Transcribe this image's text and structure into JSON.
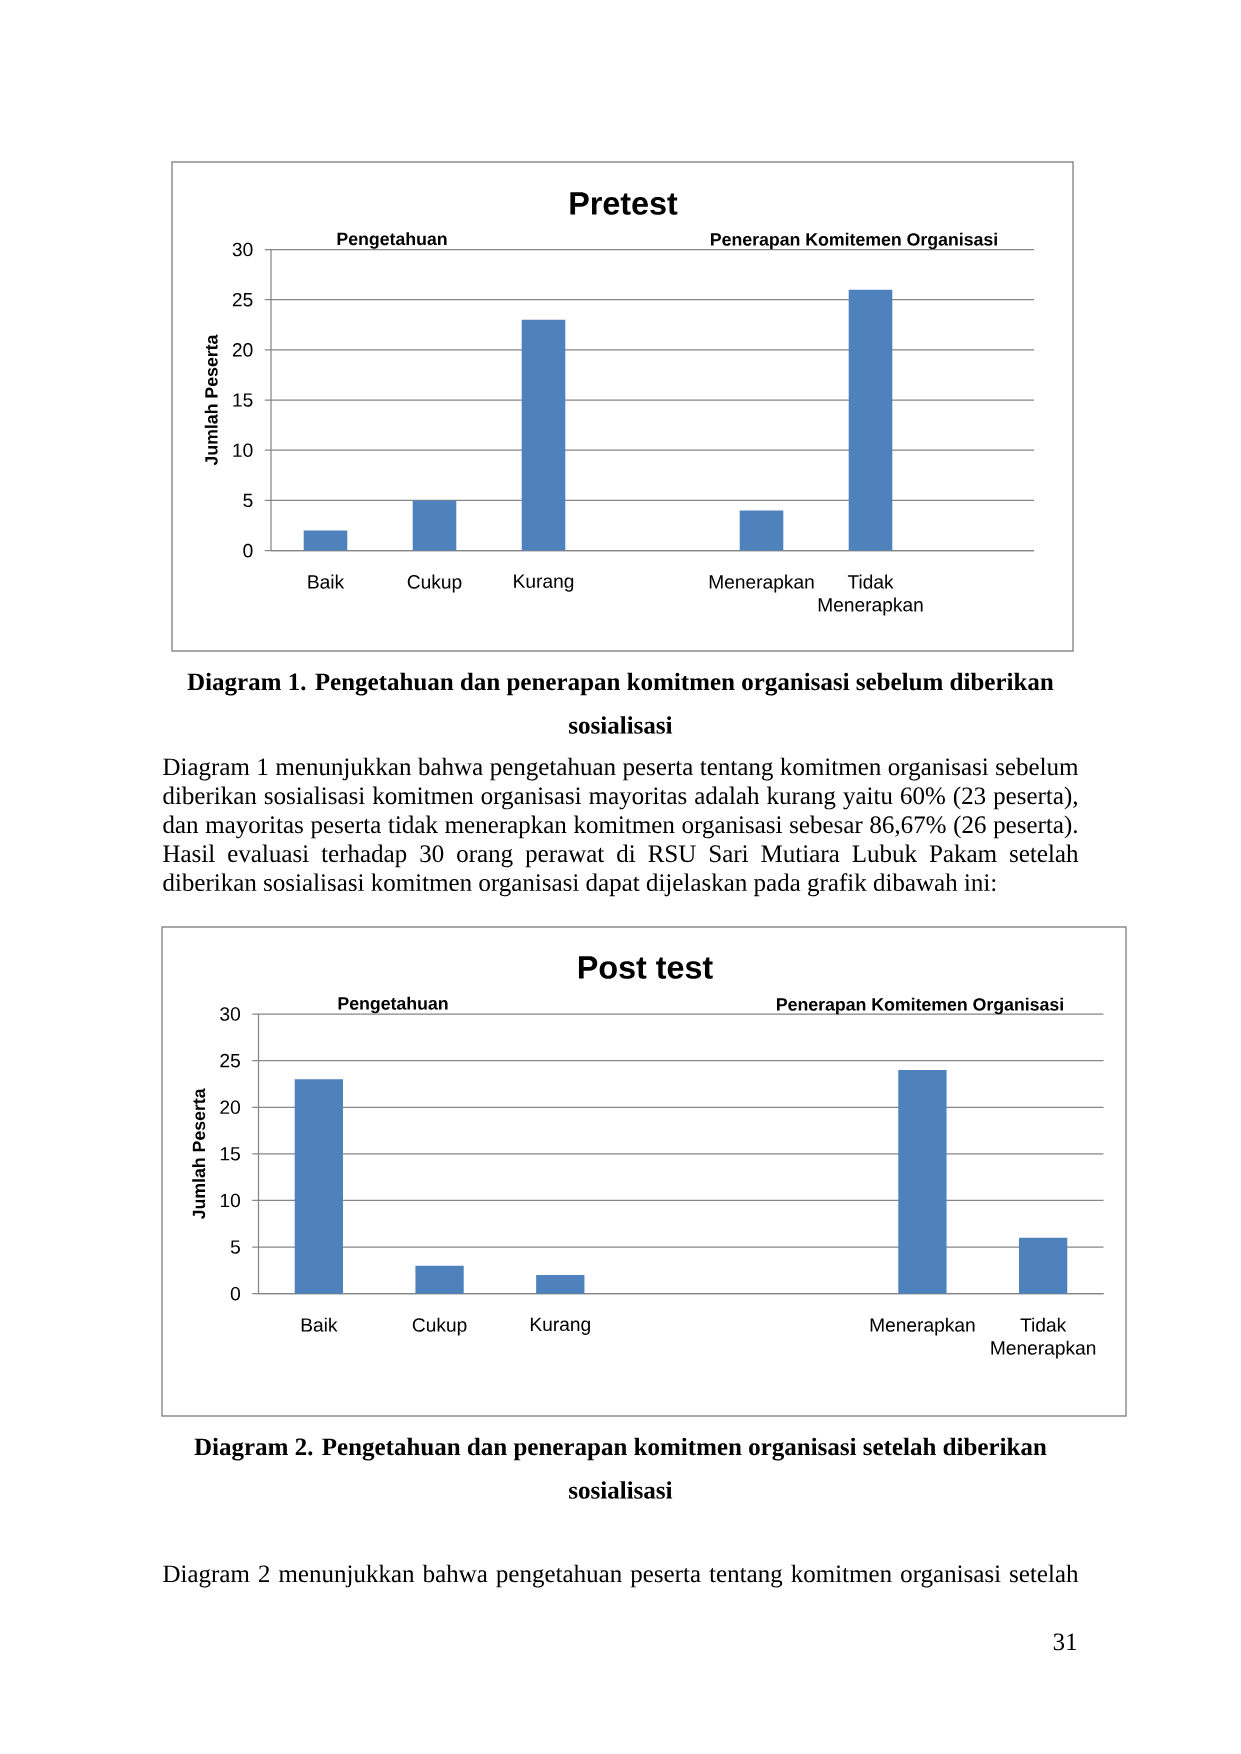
{
  "chart_data": [
    {
      "type": "bar",
      "title": "Pretest",
      "ylabel": "Jumlah Peserta",
      "categories": [
        "Baik",
        "Cukup",
        "Kurang",
        null,
        "Menerapkan",
        "Tidak Menerapkan",
        null
      ],
      "values": [
        2,
        5,
        23,
        null,
        4,
        26,
        null
      ],
      "color": "#4f81bd",
      "ylim": [
        0,
        30
      ],
      "yticks": [
        0,
        5,
        10,
        15,
        20,
        25,
        30
      ],
      "grid": "y",
      "annotations": [
        "Pengetahuan",
        "Penerapan Komitemen Organisasi",
        "Diagram 1. Pengetahuan dan penerapan komitmen organisasi sebelum diberikan sosialisasi",
        "Diagram 1 menunjukkan bahwa pengetahuan peserta tentang komitmen organisasi sebelum diberikan sosialisasi komitmen organisasi mayoritas adalah kurang yaitu 60% (23 peserta), dan mayoritas peserta tidak menerapkan komitmen organisasi sebesar 86,67% (26 peserta). Hasil evaluasi terhadap 30 orang perawat di RSU Sari Mutiara Lubuk Pakam setelah diberikan sosialisasi komitmen organisasi dapat dijelaskan pada grafik dibawah ini:"
      ]
    },
    {
      "type": "bar",
      "title": "Post test",
      "ylabel": "Jumlah Peserta",
      "categories": [
        "Baik",
        "Cukup",
        "Kurang",
        null,
        null,
        "Menerapkan",
        "Tidak Menerapkan"
      ],
      "values": [
        23,
        3,
        2,
        null,
        null,
        24,
        6
      ],
      "color": "#4f81bd",
      "ylim": [
        0,
        30
      ],
      "yticks": [
        0,
        5,
        10,
        15,
        20,
        25,
        30
      ],
      "grid": "y",
      "annotations": [
        "Pengetahuan",
        "Penerapan Komitemen Organisasi",
        "Diagram 2. Pengetahuan dan penerapan komitmen organisasi setelah diberikan sosialisasi",
        "Diagram 2 menunjukkan bahwa pengetahuan peserta tentang komitmen organisasi setelah",
        "31"
      ]
    }
  ]
}
